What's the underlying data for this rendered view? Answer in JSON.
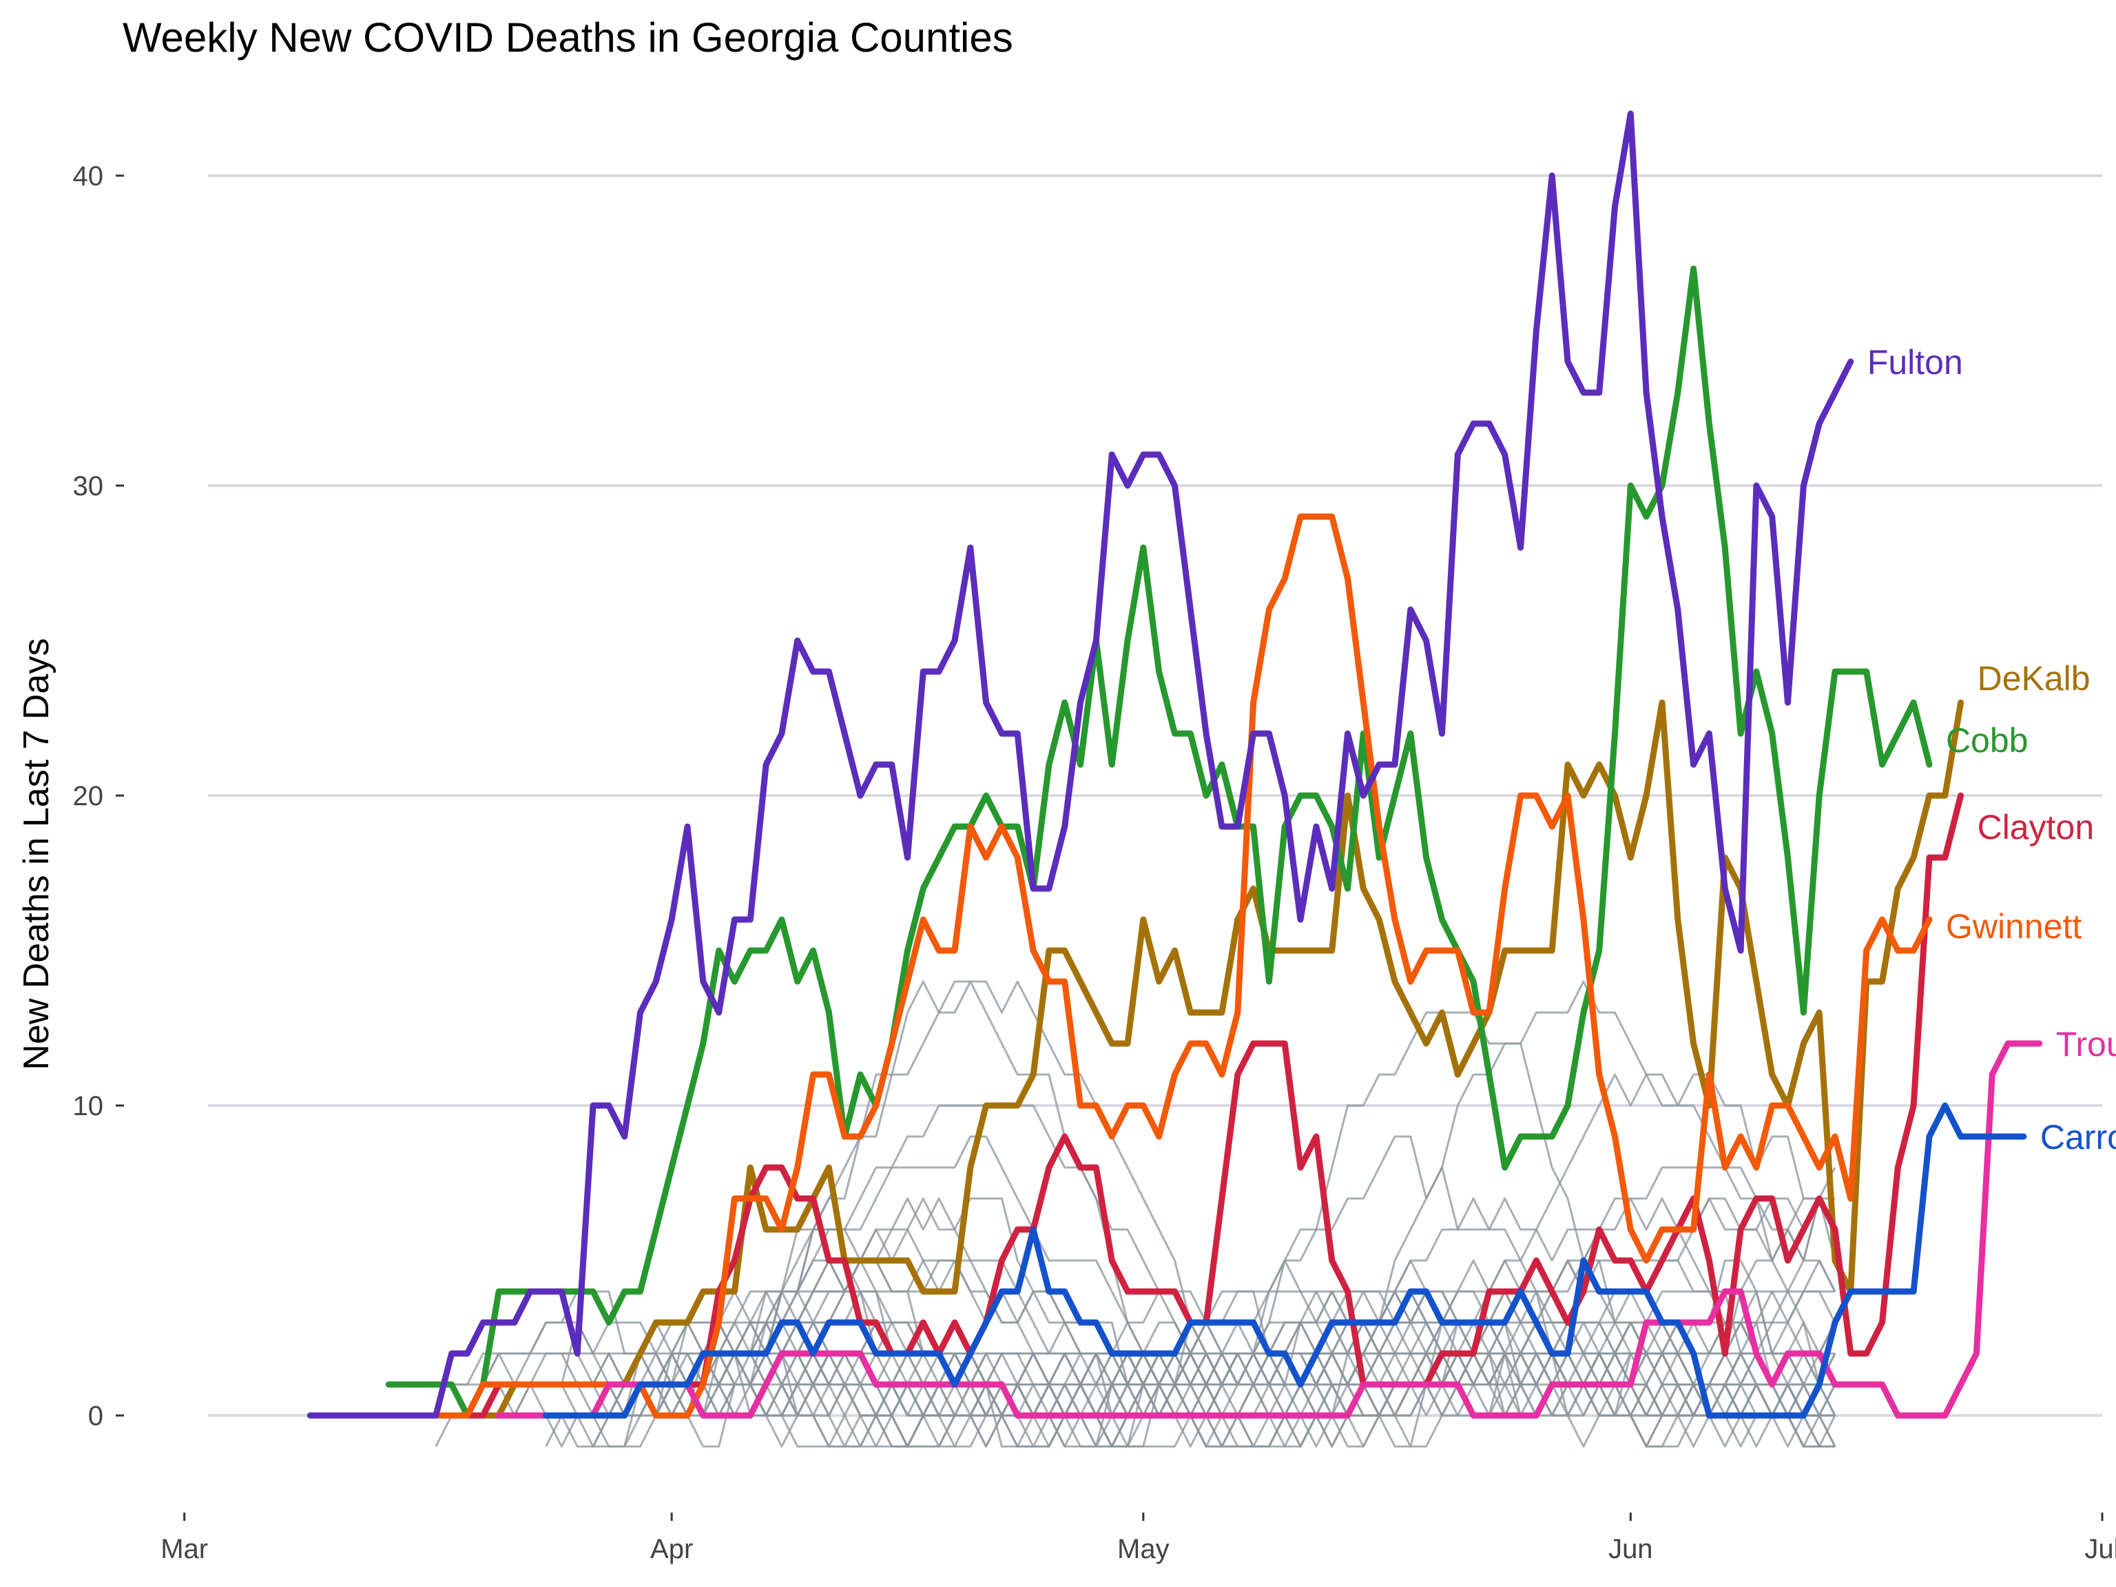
{
  "chart_data": {
    "type": "line",
    "title": "Weekly New COVID Deaths in Georgia Counties",
    "xlabel": "",
    "ylabel": "New Deaths in Last 7 Days",
    "x_range": [
      "2020-02-28",
      "2020-07-01"
    ],
    "ylim": [
      -3,
      43
    ],
    "x_ticks": [
      {
        "date": "2020-03-01",
        "label": "Mar"
      },
      {
        "date": "2020-04-01",
        "label": "Apr"
      },
      {
        "date": "2020-05-01",
        "label": "May"
      },
      {
        "date": "2020-06-01",
        "label": "Jun"
      },
      {
        "date": "2020-07-01",
        "label": "Jul"
      }
    ],
    "y_ticks": [
      0,
      10,
      20,
      30,
      40
    ],
    "grid": true,
    "legend": "direct labels at right end of lines",
    "x_start": "2020-03-09",
    "series": [
      {
        "name": "Fulton",
        "color": "#5b2dbc",
        "start": "2020-03-09",
        "values": [
          0,
          0,
          0,
          0,
          0,
          0,
          0,
          0,
          0,
          2,
          2,
          3,
          3,
          3,
          4,
          4,
          4,
          2,
          10,
          10,
          9,
          13,
          14,
          16,
          19,
          14,
          13,
          16,
          16,
          21,
          22,
          25,
          24,
          24,
          22,
          20,
          21,
          21,
          18,
          24,
          24,
          25,
          28,
          23,
          22,
          22,
          17,
          17,
          19,
          23,
          25,
          31,
          30,
          31,
          31,
          30,
          26,
          22,
          19,
          19,
          22,
          22,
          20,
          16,
          19,
          17,
          22,
          20,
          21,
          21,
          26,
          25,
          22,
          31,
          32,
          32,
          31,
          28,
          35,
          40,
          34,
          33,
          33,
          39,
          42,
          33,
          29,
          26,
          21,
          22,
          17,
          15,
          30,
          29,
          23,
          30,
          32,
          33,
          34
        ]
      },
      {
        "name": "DeKalb",
        "color": "#a5720a",
        "start": "2020-03-14",
        "values": [
          0,
          0,
          0,
          0,
          0,
          0,
          0,
          0,
          1,
          1,
          1,
          1,
          1,
          1,
          1,
          1,
          2,
          3,
          3,
          3,
          4,
          4,
          4,
          8,
          6,
          6,
          6,
          7,
          8,
          5,
          5,
          5,
          5,
          5,
          4,
          4,
          4,
          8,
          10,
          10,
          10,
          11,
          15,
          15,
          14,
          13,
          12,
          12,
          16,
          14,
          15,
          13,
          13,
          13,
          16,
          17,
          15,
          15,
          15,
          15,
          15,
          20,
          17,
          16,
          14,
          13,
          12,
          13,
          11,
          12,
          13,
          15,
          15,
          15,
          15,
          21,
          20,
          21,
          20,
          18,
          20,
          23,
          16,
          12,
          10,
          18,
          17,
          14,
          11,
          10,
          12,
          13,
          5,
          4,
          14,
          14,
          17,
          18,
          20,
          20,
          23
        ]
      },
      {
        "name": "Cobb",
        "color": "#27982e",
        "start": "2020-03-14",
        "values": [
          1,
          1,
          1,
          1,
          1,
          0,
          1,
          4,
          4,
          4,
          4,
          4,
          4,
          4,
          3,
          4,
          4,
          6,
          8,
          10,
          12,
          15,
          14,
          15,
          15,
          16,
          14,
          15,
          13,
          9,
          11,
          10,
          12,
          15,
          17,
          18,
          19,
          19,
          20,
          19,
          19,
          17,
          21,
          23,
          21,
          25,
          21,
          25,
          28,
          24,
          22,
          22,
          20,
          21,
          19,
          19,
          14,
          19,
          20,
          20,
          19,
          17,
          22,
          18,
          20,
          22,
          18,
          16,
          15,
          14,
          11,
          8,
          9,
          9,
          9,
          10,
          13,
          15,
          22,
          30,
          29,
          30,
          33,
          37,
          32,
          28,
          22,
          24,
          22,
          18,
          13,
          20,
          24,
          24,
          24,
          21,
          22,
          23,
          21
        ]
      },
      {
        "name": "Clayton",
        "color": "#cf2240",
        "start": "2020-03-14",
        "values": [
          0,
          0,
          0,
          0,
          0,
          0,
          0,
          1,
          1,
          1,
          1,
          1,
          1,
          1,
          1,
          1,
          1,
          1,
          1,
          1,
          1,
          4,
          5,
          7,
          8,
          8,
          7,
          7,
          5,
          5,
          3,
          3,
          2,
          2,
          3,
          2,
          3,
          2,
          3,
          5,
          6,
          6,
          8,
          9,
          8,
          8,
          5,
          4,
          4,
          4,
          4,
          3,
          3,
          7,
          11,
          12,
          12,
          12,
          8,
          9,
          5,
          4,
          1,
          1,
          1,
          1,
          1,
          2,
          2,
          2,
          4,
          4,
          4,
          5,
          4,
          3,
          4,
          6,
          5,
          5,
          4,
          5,
          6,
          7,
          5,
          2,
          6,
          7,
          7,
          5,
          6,
          7,
          6,
          2,
          2,
          3,
          8,
          10,
          18,
          18,
          20
        ]
      },
      {
        "name": "Gwinnett",
        "color": "#f25a0a",
        "start": "2020-03-14",
        "values": [
          0,
          0,
          0,
          0,
          0,
          0,
          1,
          1,
          1,
          1,
          1,
          1,
          1,
          1,
          1,
          1,
          1,
          0,
          0,
          0,
          1,
          3,
          7,
          7,
          7,
          6,
          8,
          11,
          11,
          9,
          9,
          10,
          12,
          14,
          16,
          15,
          15,
          19,
          18,
          19,
          18,
          15,
          14,
          14,
          10,
          10,
          9,
          10,
          10,
          9,
          11,
          12,
          12,
          11,
          13,
          23,
          26,
          27,
          29,
          29,
          29,
          27,
          23,
          19,
          16,
          14,
          15,
          15,
          15,
          13,
          13,
          17,
          20,
          20,
          19,
          20,
          16,
          11,
          9,
          6,
          5,
          6,
          6,
          6,
          11,
          8,
          9,
          8,
          10,
          10,
          9,
          8,
          9,
          7,
          15,
          16,
          15,
          15,
          16
        ]
      },
      {
        "name": "Troup",
        "color": "#e62fa1",
        "start": "2020-03-21",
        "values": [
          0,
          0,
          0,
          0,
          0,
          0,
          0,
          1,
          1,
          1,
          1,
          1,
          1,
          0,
          0,
          0,
          0,
          1,
          2,
          2,
          2,
          2,
          2,
          2,
          1,
          1,
          1,
          1,
          1,
          1,
          1,
          1,
          1,
          0,
          0,
          0,
          0,
          0,
          0,
          0,
          0,
          0,
          0,
          0,
          0,
          0,
          0,
          0,
          0,
          0,
          0,
          0,
          0,
          0,
          0,
          1,
          1,
          1,
          1,
          1,
          1,
          1,
          0,
          0,
          0,
          0,
          0,
          1,
          1,
          1,
          1,
          1,
          1,
          3,
          3,
          3,
          3,
          3,
          4,
          4,
          2,
          1,
          2,
          2,
          2,
          1,
          1,
          1,
          1,
          0,
          0,
          0,
          0,
          1,
          2,
          11,
          12,
          12,
          12
        ]
      },
      {
        "name": "Carroll",
        "color": "#1452cc",
        "start": "2020-03-24",
        "values": [
          0,
          0,
          0,
          0,
          0,
          0,
          1,
          1,
          1,
          1,
          2,
          2,
          2,
          2,
          2,
          3,
          3,
          2,
          3,
          3,
          3,
          2,
          2,
          2,
          2,
          2,
          1,
          2,
          3,
          4,
          4,
          6,
          4,
          4,
          3,
          3,
          2,
          2,
          2,
          2,
          2,
          3,
          3,
          3,
          3,
          3,
          2,
          2,
          1,
          2,
          3,
          3,
          3,
          3,
          3,
          4,
          4,
          3,
          3,
          3,
          3,
          3,
          4,
          3,
          2,
          2,
          5,
          4,
          4,
          4,
          4,
          3,
          3,
          2,
          0,
          0,
          0,
          0,
          0,
          0,
          0,
          1,
          3,
          4,
          4,
          4,
          4,
          4,
          9,
          10,
          9,
          9,
          9,
          9,
          9
        ]
      }
    ]
  }
}
